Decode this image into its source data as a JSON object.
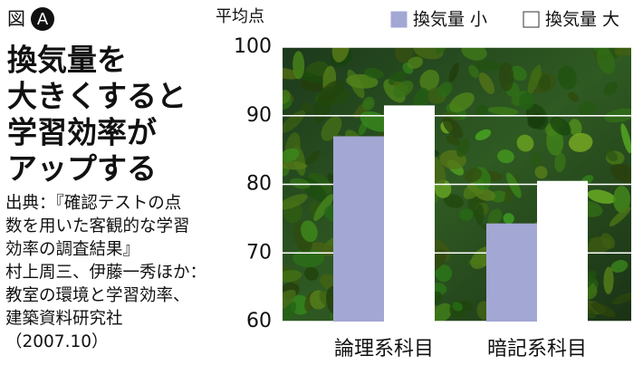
{
  "figure_label": "図",
  "figure_letter": "A",
  "title": [
    "換気量を",
    "大きくすると",
    "学習効率が",
    "アップする"
  ],
  "source": [
    "出典：『確認テストの点",
    "数を用いた客観的な学習",
    "効率の調査結果』",
    "村上周三、伊藤一秀ほか：",
    "教室の環境と学習効率、",
    "建築資料研究社",
    "（2007.10）"
  ],
  "chart_data": {
    "type": "bar",
    "y_label": "平均点",
    "categories": [
      "論理系科目",
      "暗記系科目"
    ],
    "series": [
      {
        "name": "換気量 小",
        "color": "#a3a7d4",
        "values": [
          87,
          74.3
        ]
      },
      {
        "name": "換気量 大",
        "color": "#ffffff",
        "values": [
          91.5,
          80.5
        ]
      }
    ],
    "ylim": [
      60,
      100
    ],
    "yticks": [
      60,
      70,
      80,
      90,
      100
    ],
    "grid": true,
    "legend": "top"
  }
}
